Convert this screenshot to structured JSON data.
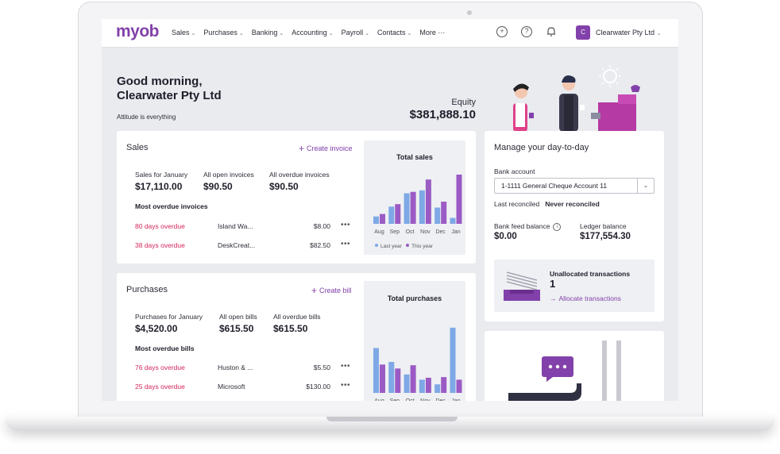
{
  "nav": {
    "logo": "myob",
    "items": [
      {
        "label": "Sales"
      },
      {
        "label": "Purchases"
      },
      {
        "label": "Banking"
      },
      {
        "label": "Accounting"
      },
      {
        "label": "Payroll"
      },
      {
        "label": "Contacts"
      },
      {
        "label": "More ···"
      }
    ],
    "company_initial": "C",
    "company_name": "Clearwater Pty Ltd"
  },
  "greeting": {
    "line1": "Good morning,",
    "line2": "Clearwater Pty Ltd",
    "tagline": "Attitude is everything",
    "equity_label": "Equity",
    "equity_value": "$381,888.10"
  },
  "sales": {
    "title": "Sales",
    "action": "Create invoice",
    "stats": [
      {
        "label": "Sales for January",
        "value": "$17,110.00"
      },
      {
        "label": "All open invoices",
        "value": "$90.50"
      },
      {
        "label": "All overdue invoices",
        "value": "$90.50"
      }
    ],
    "overdue_heading": "Most overdue invoices",
    "overdue": [
      {
        "status": "80 days overdue",
        "name": "Island Wa...",
        "amount": "$8.00"
      },
      {
        "status": "38 days overdue",
        "name": "DeskCreat...",
        "amount": "$82.50"
      }
    ],
    "chart_title": "Total sales",
    "legend_last": "Last year",
    "legend_this": "This year"
  },
  "purchases": {
    "title": "Purchases",
    "action": "Create bill",
    "stats": [
      {
        "label": "Purchases for January",
        "value": "$4,520.00"
      },
      {
        "label": "All open bills",
        "value": "$615.50"
      },
      {
        "label": "All overdue bills",
        "value": "$615.50"
      }
    ],
    "overdue_heading": "Most overdue bills",
    "overdue": [
      {
        "status": "76 days overdue",
        "name": "Huston & ...",
        "amount": "$5.50"
      },
      {
        "status": "25 days overdue",
        "name": "Microsoft",
        "amount": "$130.00"
      }
    ],
    "chart_title": "Total purchases"
  },
  "dayToDay": {
    "title": "Manage your day-to-day",
    "bank_account_label": "Bank account",
    "bank_account_value": "1-1111 General Cheque Account 11",
    "last_reconciled_label": "Last reconciled",
    "last_reconciled_value": "Never reconciled",
    "bank_feed_label": "Bank feed balance",
    "bank_feed_value": "$0.00",
    "ledger_label": "Ledger balance",
    "ledger_value": "$177,554.30",
    "unallocated_label": "Unallocated transactions",
    "unallocated_count": "1",
    "allocate_link": "Allocate transactions"
  },
  "colors": {
    "brand": "#8241aa",
    "overdue": "#d6265b",
    "last_year": "#7ea8e6",
    "this_year": "#9b5bc4"
  },
  "chart_data": [
    {
      "type": "bar",
      "title": "Total sales",
      "categories": [
        "Aug",
        "Sep",
        "Oct",
        "Nov",
        "Dec",
        "Jan"
      ],
      "series": [
        {
          "name": "Last year",
          "values": [
            1.5,
            3.5,
            6.2,
            6.8,
            3.3,
            1.2
          ]
        },
        {
          "name": "This year",
          "values": [
            2.0,
            4.0,
            6.5,
            9.0,
            4.5,
            10.0
          ]
        }
      ],
      "ylim": [
        0,
        10
      ]
    },
    {
      "type": "bar",
      "title": "Total purchases",
      "categories": [
        "Aug",
        "Sep",
        "Oct",
        "Nov",
        "Dec",
        "Jan"
      ],
      "series": [
        {
          "name": "Last year",
          "values": [
            6.8,
            4.7,
            2.8,
            2.0,
            1.3,
            9.9
          ]
        },
        {
          "name": "This year",
          "values": [
            4.3,
            3.7,
            4.2,
            2.3,
            2.4,
            2.0
          ]
        }
      ],
      "ylim": [
        0,
        10
      ]
    }
  ]
}
